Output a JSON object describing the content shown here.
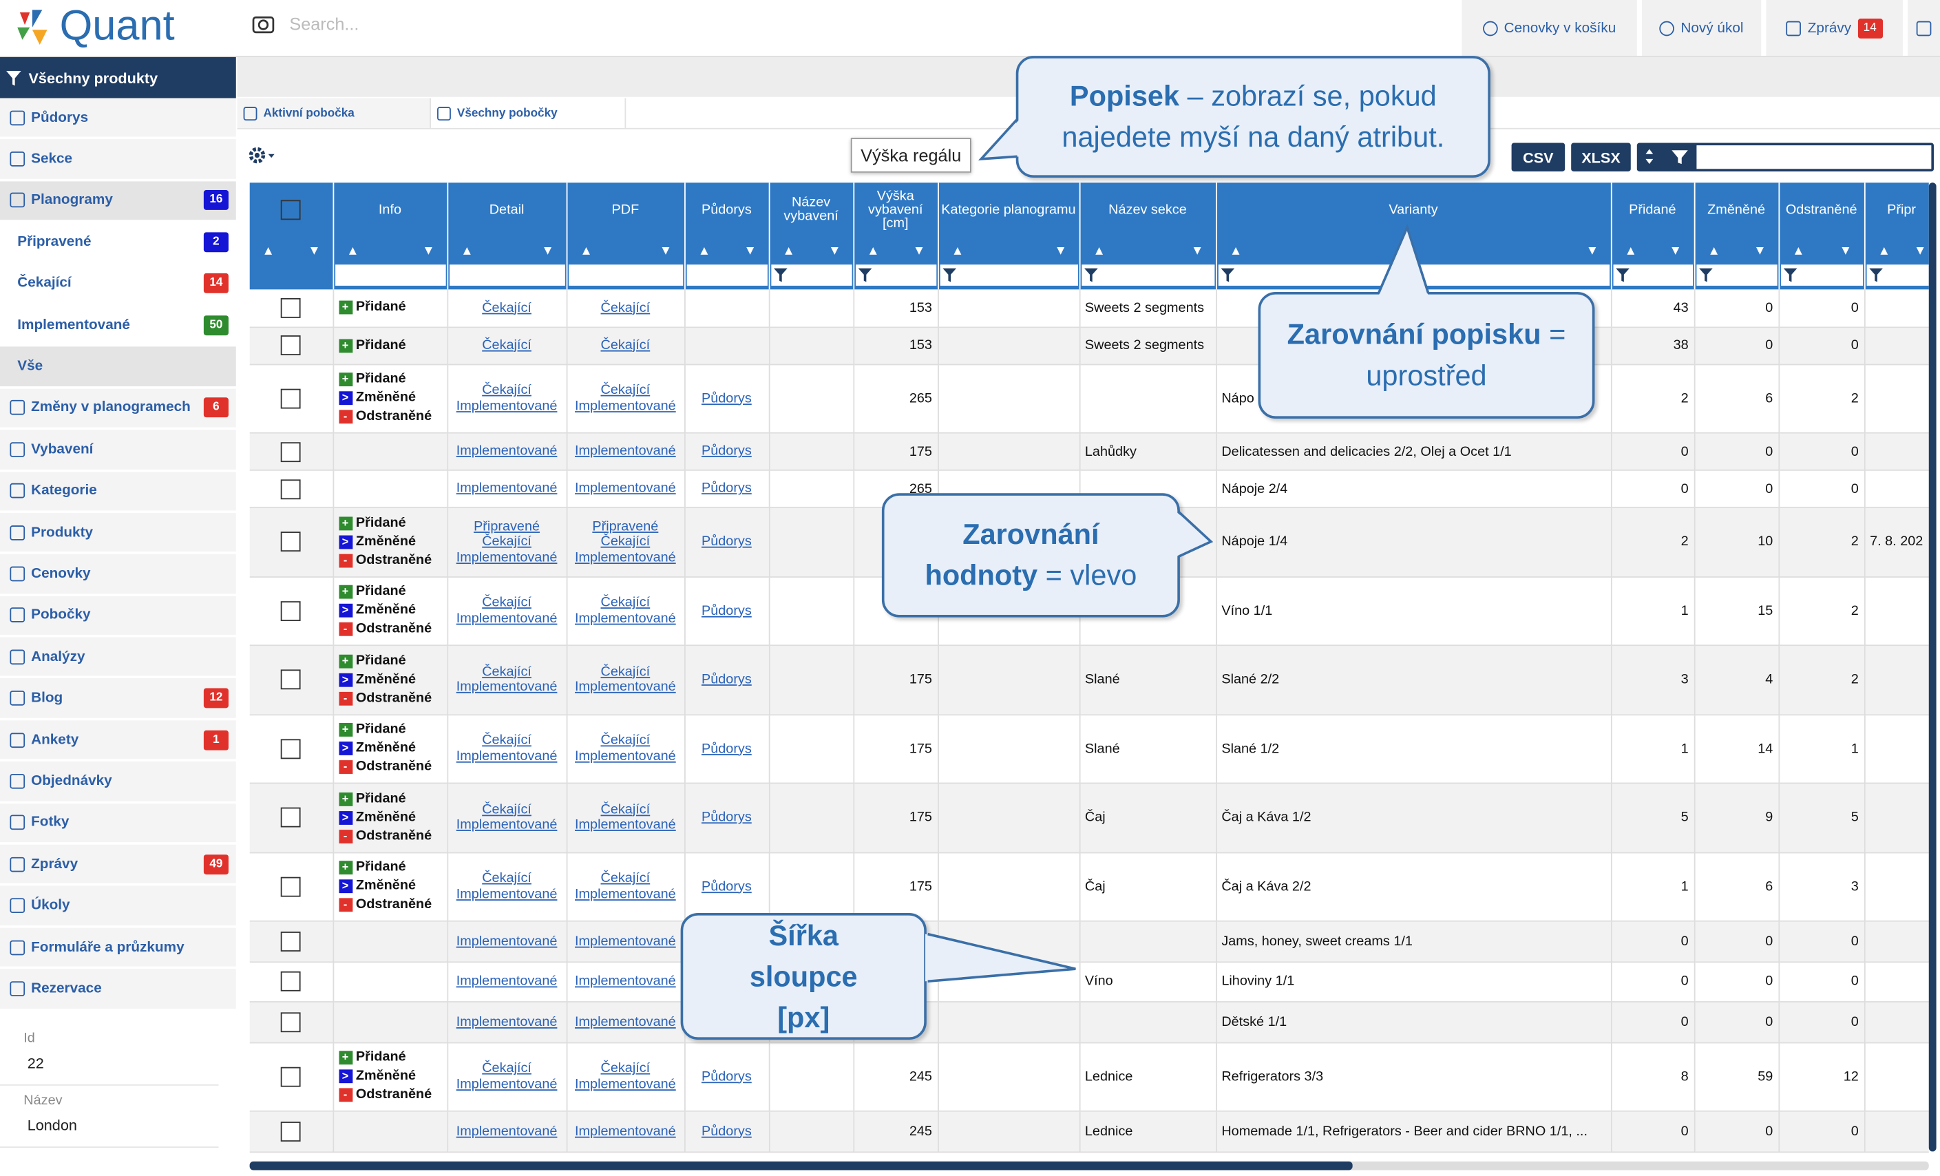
{
  "topbar": {
    "logo": "Quant",
    "search_placeholder": "Search...",
    "buttons": [
      {
        "label": "Cenovky v košíku"
      },
      {
        "label": "Nový úkol"
      },
      {
        "label": "Zprávy",
        "badge": 14
      }
    ]
  },
  "sidebar": {
    "header": "Všechny produkty",
    "items": [
      {
        "label": "Půdorys"
      },
      {
        "label": "Sekce"
      },
      {
        "label": "Planogramy",
        "badge": 16,
        "badge_color": "#1515d6",
        "active": true
      },
      {
        "label": "Připravené",
        "badge": 2,
        "badge_color": "#1515d6",
        "sub": true
      },
      {
        "label": "Čekající",
        "badge": 14,
        "badge_color": "#e0322b",
        "sub": true
      },
      {
        "label": "Implementované",
        "badge": 50,
        "badge_color": "#2e8b2e",
        "sub": true
      },
      {
        "label": "Vše",
        "sub": true,
        "active": true
      },
      {
        "label": "Změny v planogramech",
        "badge": 6,
        "badge_color": "#e0322b"
      },
      {
        "label": "Vybavení"
      },
      {
        "label": "Kategorie"
      },
      {
        "label": "Produkty"
      },
      {
        "label": "Cenovky"
      },
      {
        "label": "Pobočky"
      },
      {
        "label": "Analýzy"
      },
      {
        "label": "Blog",
        "badge": 12,
        "badge_color": "#e0322b"
      },
      {
        "label": "Ankety",
        "badge": 1,
        "badge_color": "#e0322b"
      },
      {
        "label": "Objednávky"
      },
      {
        "label": "Fotky"
      },
      {
        "label": "Zprávy",
        "badge": 49,
        "badge_color": "#e0322b"
      },
      {
        "label": "Úkoly"
      },
      {
        "label": "Formuláře a průzkumy"
      },
      {
        "label": "Rezervace"
      }
    ],
    "details": [
      {
        "label": "Id",
        "value": "22"
      },
      {
        "label": "Název",
        "value": "London"
      }
    ]
  },
  "tabs": [
    "Aktivní pobočka",
    "Všechny pobočky"
  ],
  "tooltip": "Výška regálu",
  "export_buttons": [
    "CSV",
    "XLSX"
  ],
  "table": {
    "columns": [
      "Info",
      "Detail",
      "PDF",
      "Půdorys",
      "Název vybavení",
      "Výška vybavení [cm]",
      "Kategorie planogramu",
      "Název sekce",
      "Varianty",
      "Přidané",
      "Změněné",
      "Odstraněné",
      "Připr"
    ],
    "rows": [
      {
        "info": [
          "Přidané"
        ],
        "detail": [
          "Čekající"
        ],
        "pdf": [
          "Čekající"
        ],
        "vyska": 153,
        "sekce": "Sweets 2 segments",
        "pridane": 43,
        "zmenene": 0,
        "odstranene": 0
      },
      {
        "info": [
          "Přidané"
        ],
        "detail": [
          "Čekající"
        ],
        "pdf": [
          "Čekající"
        ],
        "vyska": 153,
        "sekce": "Sweets 2 segments",
        "pridane": 38,
        "zmenene": 0,
        "odstranene": 0
      },
      {
        "info": [
          "Přidané",
          "Změněné",
          "Odstraněné"
        ],
        "detail": [
          "Čekající",
          "Implementované"
        ],
        "pdf": [
          "Čekající",
          "Implementované"
        ],
        "pudorys": "Půdorys",
        "vyska": 265,
        "varianty": "Nápo",
        "pridane": 2,
        "zmenene": 6,
        "odstranene": 2
      },
      {
        "detail": [
          "Implementované"
        ],
        "pdf": [
          "Implementované"
        ],
        "pudorys": "Půdorys",
        "vyska": 175,
        "sekce": "Lahůdky",
        "varianty": "Delicatessen and delicacies 2/2, Olej a Ocet 1/1",
        "pridane": 0,
        "zmenene": 0,
        "odstranene": 0
      },
      {
        "detail": [
          "Implementované"
        ],
        "pdf": [
          "Implementované"
        ],
        "pudorys": "Půdorys",
        "vyska": 265,
        "varianty": "Nápoje 2/4",
        "pridane": 0,
        "zmenene": 0,
        "odstranene": 0
      },
      {
        "info": [
          "Přidané",
          "Změněné",
          "Odstraněné"
        ],
        "detail": [
          "Připravené",
          "Čekající",
          "Implementované"
        ],
        "pdf": [
          "Připravené",
          "Čekající",
          "Implementované"
        ],
        "pudorys": "Půdorys",
        "varianty": "Nápoje 1/4",
        "pridane": 2,
        "zmenene": 10,
        "odstranene": 2,
        "pripr": "7. 8. 202"
      },
      {
        "info": [
          "Přidané",
          "Změněné",
          "Odstraněné"
        ],
        "detail": [
          "Čekající",
          "Implementované"
        ],
        "pdf": [
          "Čekající",
          "Implementované"
        ],
        "pudorys": "Půdorys",
        "varianty": "Víno 1/1",
        "pridane": 1,
        "zmenene": 15,
        "odstranene": 2
      },
      {
        "info": [
          "Přidané",
          "Změněné",
          "Odstraněné"
        ],
        "detail": [
          "Čekající",
          "Implementované"
        ],
        "pdf": [
          "Čekající",
          "Implementované"
        ],
        "pudorys": "Půdorys",
        "vyska": 175,
        "sekce": "Slané",
        "varianty": "Slané 2/2",
        "pridane": 3,
        "zmenene": 4,
        "odstranene": 2
      },
      {
        "info": [
          "Přidané",
          "Změněné",
          "Odstraněné"
        ],
        "detail": [
          "Čekající",
          "Implementované"
        ],
        "pdf": [
          "Čekající",
          "Implementované"
        ],
        "pudorys": "Půdorys",
        "vyska": 175,
        "sekce": "Slané",
        "varianty": "Slané 1/2",
        "pridane": 1,
        "zmenene": 14,
        "odstranene": 1
      },
      {
        "info": [
          "Přidané",
          "Změněné",
          "Odstraněné"
        ],
        "detail": [
          "Čekající",
          "Implementované"
        ],
        "pdf": [
          "Čekající",
          "Implementované"
        ],
        "pudorys": "Půdorys",
        "vyska": 175,
        "sekce": "Čaj",
        "varianty": "Čaj a Káva 1/2",
        "pridane": 5,
        "zmenene": 9,
        "odstranene": 5
      },
      {
        "info": [
          "Přidané",
          "Změněné",
          "Odstraněné"
        ],
        "detail": [
          "Čekající",
          "Implementované"
        ],
        "pdf": [
          "Čekající",
          "Implementované"
        ],
        "pudorys": "Půdorys",
        "vyska": 175,
        "sekce": "Čaj",
        "varianty": "Čaj a Káva 2/2",
        "pridane": 1,
        "zmenene": 6,
        "odstranene": 3
      },
      {
        "detail": [
          "Implementované"
        ],
        "pdf": [
          "Implementované"
        ],
        "varianty": "Jams, honey, sweet creams 1/1",
        "pridane": 0,
        "zmenene": 0,
        "odstranene": 0
      },
      {
        "detail": [
          "Implementované"
        ],
        "pdf": [
          "Implementované"
        ],
        "sekce": "Víno",
        "varianty": "Lihoviny 1/1",
        "pridane": 0,
        "zmenene": 0,
        "odstranene": 0
      },
      {
        "detail": [
          "Implementované"
        ],
        "pdf": [
          "Implementované"
        ],
        "varianty": "Dětské 1/1",
        "pridane": 0,
        "zmenene": 0,
        "odstranene": 0
      },
      {
        "info": [
          "Přidané",
          "Změněné",
          "Odstraněné"
        ],
        "detail": [
          "Čekající",
          "Implementované"
        ],
        "pdf": [
          "Čekající",
          "Implementované"
        ],
        "pudorys": "Půdorys",
        "vyska": 245,
        "sekce": "Lednice",
        "varianty": "Refrigerators 3/3",
        "pridane": 8,
        "zmenene": 59,
        "odstranene": 12
      },
      {
        "detail": [
          "Implementované"
        ],
        "pdf": [
          "Implementované"
        ],
        "pudorys": "Půdorys",
        "vyska": 245,
        "sekce": "Lednice",
        "varianty": "Homemade 1/1, Refrigerators - Beer and cider BRNO 1/1, ...",
        "pridane": 0,
        "zmenene": 0,
        "odstranene": 0
      }
    ]
  },
  "callouts": [
    {
      "bold": "Popisek",
      "text": "– zobrazí se, pokud najedete myší na daný atribut."
    },
    {
      "bold": "Zarovnání popisku",
      "text": "= uprostřed"
    },
    {
      "bold": "Zarovnání hodnoty",
      "text": "= vlevo"
    },
    {
      "bold": "Šířka sloupce [px]"
    }
  ]
}
